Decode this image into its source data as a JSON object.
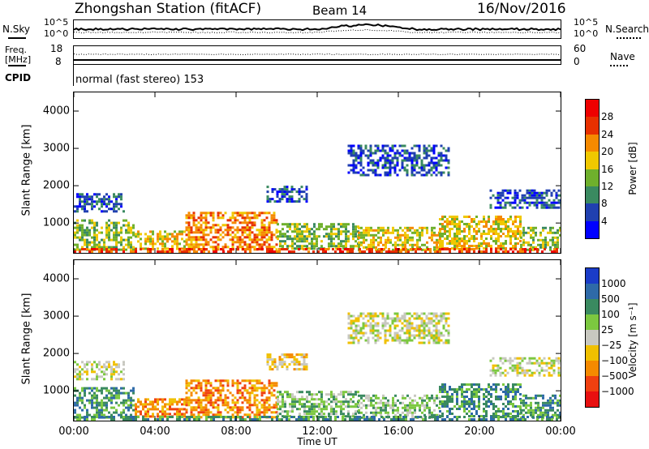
{
  "header": {
    "station": "Zhongshan Station (fitACF)",
    "beam": "Beam 14",
    "date": "16/Nov/2016"
  },
  "top_panels": {
    "nsky_label": "N.Sky",
    "nsky_ticks": [
      "10^5",
      "10^0"
    ],
    "nsearch_label": "N.Search",
    "nsearch_ticks": [
      "10^5",
      "10^0"
    ],
    "freq_label_line1": "Freq.",
    "freq_label_line2": "[MHz]",
    "freq_ticks": [
      "18",
      "8"
    ],
    "nave_label": "Nave",
    "nave_ticks": [
      "60",
      "0"
    ],
    "cpid_label": "CPID",
    "cpid_text": "normal (fast stereo) 153"
  },
  "chart_data": [
    {
      "type": "heatmap",
      "name": "power",
      "ylabel": "Slant Range [km]",
      "yticks": [
        "1000",
        "2000",
        "3000",
        "4000"
      ],
      "ylim": [
        200,
        4500
      ],
      "xlim": [
        0,
        24
      ],
      "colorbar": {
        "label": "Power [dB]",
        "ticks": [
          "4",
          "8",
          "12",
          "16",
          "20",
          "24",
          "28"
        ],
        "colors": [
          "#0000ff",
          "#2040b0",
          "#3a8a60",
          "#6fb02c",
          "#f0c800",
          "#f58a00",
          "#e83000",
          "#ee0000"
        ]
      },
      "echo_regions": [
        {
          "t0": 0.0,
          "t1": 3.0,
          "r0": 300,
          "r1": 1100,
          "level": 3
        },
        {
          "t0": 0.0,
          "t1": 2.5,
          "r0": 1300,
          "r1": 1800,
          "level": 1
        },
        {
          "t0": 3.0,
          "t1": 5.5,
          "r0": 300,
          "r1": 800,
          "level": 4
        },
        {
          "t0": 5.5,
          "t1": 10.0,
          "r0": 300,
          "r1": 1300,
          "level": 5
        },
        {
          "t0": 9.5,
          "t1": 11.5,
          "r0": 1600,
          "r1": 2000,
          "level": 1
        },
        {
          "t0": 10.0,
          "t1": 14.0,
          "r0": 300,
          "r1": 1000,
          "level": 3
        },
        {
          "t0": 13.5,
          "t1": 18.5,
          "r0": 2300,
          "r1": 3100,
          "level": 1
        },
        {
          "t0": 14.0,
          "t1": 18.0,
          "r0": 300,
          "r1": 900,
          "level": 4
        },
        {
          "t0": 18.0,
          "t1": 22.0,
          "r0": 300,
          "r1": 1200,
          "level": 4
        },
        {
          "t0": 20.5,
          "t1": 24.0,
          "r0": 1400,
          "r1": 1900,
          "level": 1
        },
        {
          "t0": 22.0,
          "t1": 24.0,
          "r0": 300,
          "r1": 900,
          "level": 3
        },
        {
          "t0": 0.0,
          "t1": 24.0,
          "r0": 200,
          "r1": 330,
          "level": 6
        }
      ]
    },
    {
      "type": "heatmap",
      "name": "velocity",
      "ylabel": "Slant Range [km]",
      "yticks": [
        "1000",
        "2000",
        "3000",
        "4000"
      ],
      "ylim": [
        200,
        4500
      ],
      "xlim": [
        0,
        24
      ],
      "colorbar": {
        "label": "Velocity [m s⁻¹]",
        "ticks": [
          "1000",
          "500",
          "100",
          "25",
          "−25",
          "−100",
          "−500",
          "−1000"
        ],
        "colors": [
          "#1a3cc8",
          "#2e6aa8",
          "#3a8a60",
          "#7cc840",
          "#c8c8c0",
          "#f0c000",
          "#f58a00",
          "#f04010",
          "#e81010"
        ]
      },
      "echo_regions": [
        {
          "t0": 0.0,
          "t1": 3.0,
          "r0": 300,
          "r1": 1100,
          "level": 2
        },
        {
          "t0": 0.0,
          "t1": 2.5,
          "r0": 1300,
          "r1": 1800,
          "level": 4
        },
        {
          "t0": 3.0,
          "t1": 5.5,
          "r0": 300,
          "r1": 800,
          "level": 6
        },
        {
          "t0": 5.5,
          "t1": 10.0,
          "r0": 300,
          "r1": 1300,
          "level": 6
        },
        {
          "t0": 9.5,
          "t1": 11.5,
          "r0": 1600,
          "r1": 2000,
          "level": 5
        },
        {
          "t0": 10.0,
          "t1": 14.0,
          "r0": 300,
          "r1": 1000,
          "level": 3
        },
        {
          "t0": 13.5,
          "t1": 18.5,
          "r0": 2300,
          "r1": 3100,
          "level": 4
        },
        {
          "t0": 14.0,
          "t1": 18.0,
          "r0": 300,
          "r1": 900,
          "level": 3
        },
        {
          "t0": 18.0,
          "t1": 22.0,
          "r0": 300,
          "r1": 1200,
          "level": 2
        },
        {
          "t0": 20.5,
          "t1": 24.0,
          "r0": 1400,
          "r1": 1900,
          "level": 4
        },
        {
          "t0": 22.0,
          "t1": 24.0,
          "r0": 300,
          "r1": 900,
          "level": 2
        },
        {
          "t0": 0.0,
          "t1": 24.0,
          "r0": 200,
          "r1": 330,
          "level": 2
        }
      ]
    }
  ],
  "xaxis": {
    "ticks": [
      "00:00",
      "04:00",
      "08:00",
      "12:00",
      "16:00",
      "20:00",
      "00:00"
    ],
    "label": "Time UT"
  }
}
